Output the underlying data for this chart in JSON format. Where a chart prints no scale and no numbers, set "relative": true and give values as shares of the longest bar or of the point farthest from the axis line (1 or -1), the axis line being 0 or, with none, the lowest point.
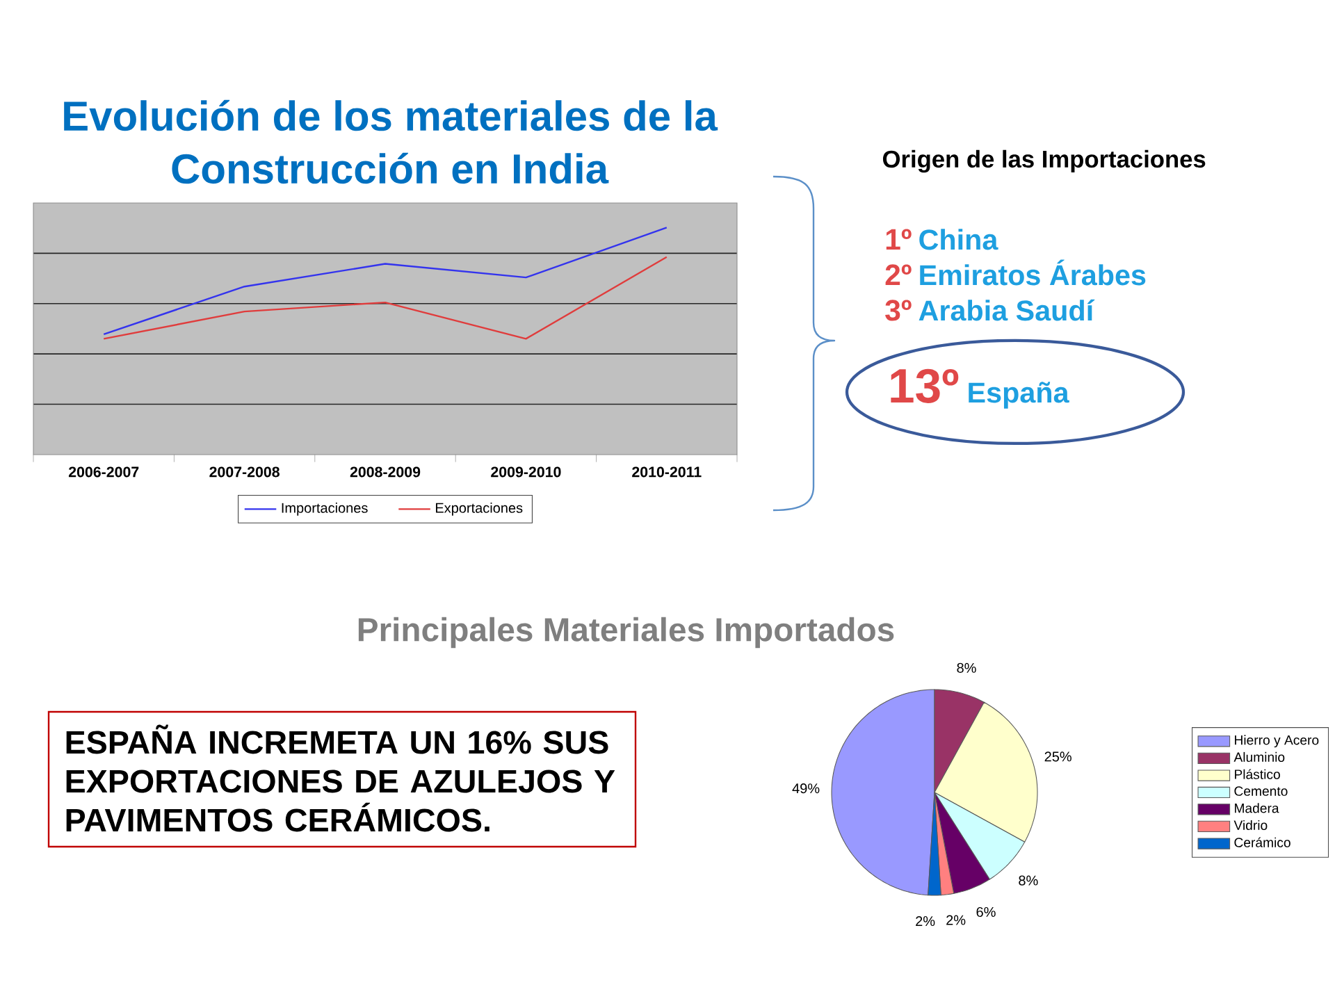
{
  "chart_data": [
    {
      "type": "line",
      "title": "Evolución de los materiales de la Construcción en India",
      "categories": [
        "2006-2007",
        "2007-2008",
        "2008-2009",
        "2009-2010",
        "2010-2011"
      ],
      "relative": true,
      "series": [
        {
          "name": "Importaciones",
          "color": "#3333ee",
          "values": [
            0.53,
            0.74,
            0.84,
            0.78,
            1
          ]
        },
        {
          "name": "Exportaciones",
          "color": "#e03c3c",
          "values": [
            0.51,
            0.63,
            0.67,
            0.51,
            0.87
          ]
        }
      ],
      "grid": "y",
      "legend": "bottom"
    },
    {
      "type": "other",
      "title": "Origen de las Importaciones",
      "categories": [
        "China",
        "Emiratos Árabes",
        "Arabia Saudí",
        "España"
      ],
      "values": [
        1,
        2,
        3,
        13
      ],
      "value_labels": [
        "1º",
        "2º",
        "3º",
        "13º"
      ]
    },
    {
      "type": "pie",
      "title": "Principales Materiales Importados",
      "categories": [
        "Hierro y Acero",
        "Aluminio",
        "Plástico",
        "Cemento",
        "Madera",
        "Vidrio",
        "Cerámico"
      ],
      "values": [
        49,
        8,
        25,
        8,
        6,
        2,
        2
      ],
      "colors": [
        "#9999ff",
        "#993366",
        "#ffffcc",
        "#ccffff",
        "#660066",
        "#ff8080",
        "#0066cc"
      ],
      "value_labels": [
        "49%",
        "8%",
        "25%",
        "8%",
        "6%",
        "2%",
        "2%"
      ],
      "legend": "right"
    },
    {
      "type": "other",
      "annotations": [
        "ESPAÑA INCREMETA UN 16% SUS EXPORTACIONES DE AZULEJOS Y PAVIMENTOS CERÁMICOS."
      ]
    }
  ]
}
